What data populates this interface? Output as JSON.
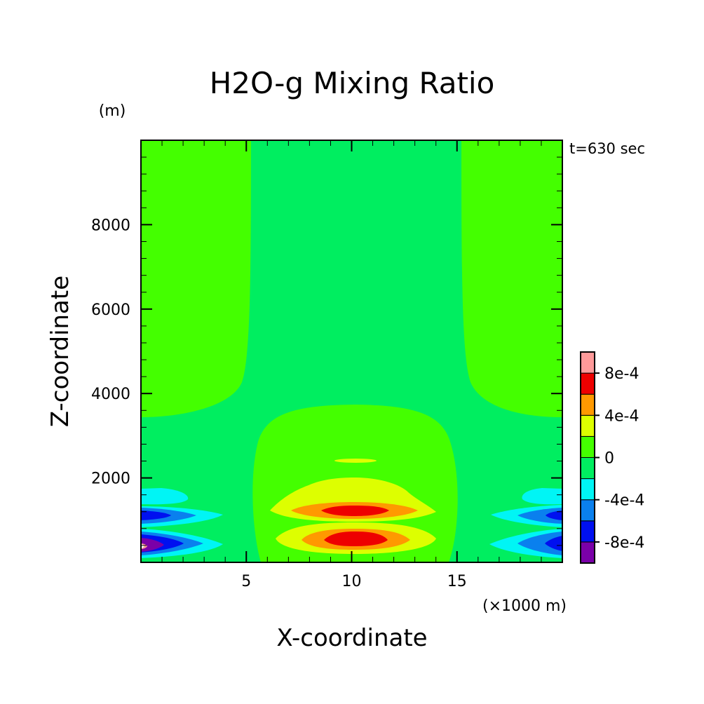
{
  "chart_data": {
    "type": "heatmap",
    "title": "H2O-g Mixing Ratio",
    "xlabel": "X-coordinate",
    "ylabel": "Z-coordinate",
    "x_unit": "(×1000 m)",
    "y_unit": "(m)",
    "time_label": "t=630 sec",
    "xlim": [
      0,
      20
    ],
    "ylim": [
      0,
      10000
    ],
    "x_ticks": [
      5,
      10,
      15
    ],
    "y_ticks": [
      2000,
      4000,
      6000,
      8000
    ],
    "background_level": "0 to 2e-4",
    "colorbar": {
      "ticks": [
        "8e-4",
        "4e-4",
        "0",
        "-4e-4",
        "-8e-4"
      ],
      "levels": [
        {
          "min": -0.001,
          "max": -0.0008,
          "color": "#7a00a8"
        },
        {
          "min": -0.0008,
          "max": -0.0006,
          "color": "#0010f0"
        },
        {
          "min": -0.0006,
          "max": -0.0004,
          "color": "#0a80ee"
        },
        {
          "min": -0.0004,
          "max": -0.0002,
          "color": "#00f5f5"
        },
        {
          "min": -0.0002,
          "max": 0.0,
          "color": "#00ee60"
        },
        {
          "min": 0.0,
          "max": 0.0002,
          "color": "#44ff00"
        },
        {
          "min": 0.0002,
          "max": 0.0004,
          "color": "#ddff00"
        },
        {
          "min": 0.0004,
          "max": 0.0006,
          "color": "#ff9900"
        },
        {
          "min": 0.0006,
          "max": 0.0008,
          "color": "#ee0000"
        },
        {
          "min": 0.0008,
          "max": 0.001,
          "color": "#ff9a9a"
        }
      ]
    },
    "features": [
      {
        "name": "central column",
        "level": "-2e-4 to 0",
        "x_range": [
          5.4,
          15.2
        ],
        "z_range": [
          0,
          10000
        ]
      },
      {
        "name": "upper positive lobe",
        "level_max": "6e-4 to 8e-4",
        "x_center": 10,
        "z_center": 1300
      },
      {
        "name": "lower positive lobe",
        "level_max": "6e-4 to 8e-4",
        "x_center": 10,
        "z_center": 600
      },
      {
        "name": "left boundary negative lobes",
        "level_min": "below -8e-4",
        "x_center": 0.3,
        "z_center": 450
      },
      {
        "name": "right boundary negative lobes",
        "level_min": "-8e-4 to -6e-4",
        "x_center": 19.8,
        "z_center": 450
      }
    ]
  }
}
